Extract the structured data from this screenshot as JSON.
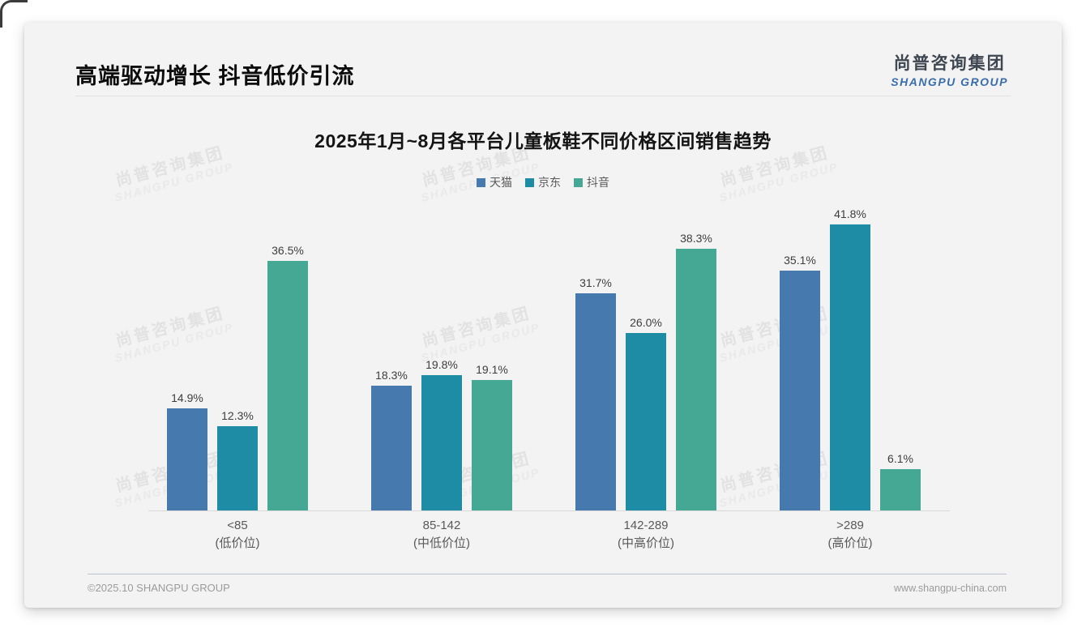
{
  "page": {
    "header_title": "高端驱动增长 抖音低价引流",
    "logo": {
      "cn": "尚普咨询集团",
      "en": "SHANGPU GROUP"
    },
    "watermark": {
      "cn": "尚普咨询集团",
      "en": "SHANGPU GROUP"
    },
    "footer": {
      "copyright": "©2025.10 SHANGPU GROUP",
      "website": "www.shangpu-china.com"
    }
  },
  "chart_data": {
    "type": "bar",
    "title": "2025年1月~8月各平台儿童板鞋不同价格区间销售趋势",
    "categories": [
      "<85",
      "85-142",
      "142-289",
      ">289"
    ],
    "category_sublabels": [
      "(低价位)",
      "(中低价位)",
      "(中高价位)",
      "(高价位)"
    ],
    "series": [
      {
        "name": "天猫",
        "color": "#4679ad",
        "values": [
          14.9,
          18.3,
          31.7,
          35.1
        ]
      },
      {
        "name": "京东",
        "color": "#1f8ca6",
        "values": [
          12.3,
          19.8,
          26.0,
          41.8
        ]
      },
      {
        "name": "抖音",
        "color": "#45a894",
        "values": [
          36.5,
          19.1,
          38.3,
          6.1
        ]
      }
    ],
    "value_label_format": "{value}%",
    "ylim": [
      0,
      45
    ],
    "grid": false,
    "y_axis_visible": false,
    "legend_position": "top-center",
    "axis_color": "#d8d8d8"
  }
}
